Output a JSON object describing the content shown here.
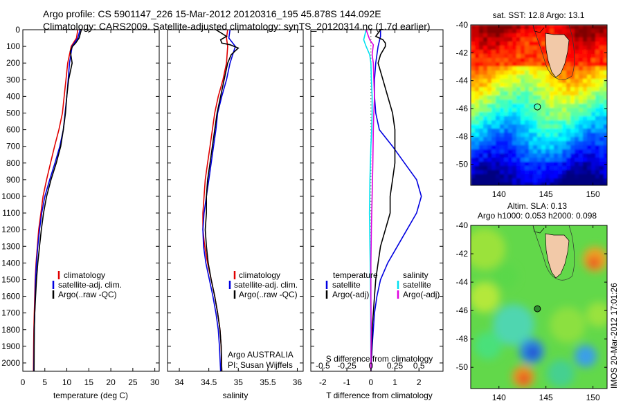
{
  "header": {
    "line1": "Argo profile: CS 5901147_226 15-Mar-2012 20120316_195 45.878S 144.092E",
    "line2": "Climatology: CARS2009. Satellite-adjusted climatology: synTS_20120314.nc (1.7d earlier)"
  },
  "colors": {
    "climatology": "#e00000",
    "satellite": "#0000e0",
    "argo": "#000000",
    "magenta": "#e000e0",
    "cyan": "#00e0f0"
  },
  "chart_data": [
    {
      "type": "line",
      "xlabel": "temperature (deg C)",
      "ylabel": "",
      "xlim": [
        0,
        31
      ],
      "ylim": [
        2050,
        0
      ],
      "xticks": [
        0,
        5,
        10,
        15,
        20,
        25,
        30
      ],
      "yticks": [
        0,
        100,
        200,
        300,
        400,
        500,
        600,
        700,
        800,
        900,
        1000,
        1100,
        1200,
        1300,
        1400,
        1500,
        1600,
        1700,
        1800,
        1900,
        2000
      ],
      "legend": [
        "climatology",
        "satellite-adj. clim.",
        "Argo(..raw -QC)"
      ],
      "series": [
        {
          "name": "climatology",
          "color": "#e00000",
          "x": [
            12.5,
            12.2,
            11.0,
            10.2,
            9.8,
            9.4,
            9.0,
            8.2,
            7.2,
            6.3,
            5.4,
            4.6,
            4.1,
            3.6,
            3.3,
            3.0,
            2.8,
            2.7,
            2.6,
            2.5,
            2.45,
            2.4
          ],
          "y": [
            0,
            50,
            100,
            200,
            300,
            400,
            500,
            600,
            700,
            800,
            900,
            1000,
            1100,
            1200,
            1300,
            1400,
            1500,
            1600,
            1700,
            1800,
            1900,
            2050
          ]
        },
        {
          "name": "satellite-adj. clim.",
          "color": "#0000e0",
          "x": [
            13.0,
            12.5,
            11.2,
            10.6,
            10.3,
            10.0,
            9.6,
            9.2,
            8.4,
            7.3,
            6.1,
            5.0,
            4.3,
            3.8,
            3.4,
            3.1,
            2.9,
            2.8,
            2.7,
            2.6,
            2.55,
            2.5
          ],
          "y": [
            0,
            50,
            100,
            200,
            300,
            400,
            500,
            600,
            700,
            800,
            900,
            1000,
            1100,
            1200,
            1300,
            1400,
            1500,
            1600,
            1700,
            1800,
            1900,
            2050
          ]
        },
        {
          "name": "Argo(..raw -QC)",
          "color": "#000000",
          "x": [
            13.3,
            12.8,
            12.0,
            11.3,
            10.8,
            11.2,
            10.4,
            10.0,
            9.7,
            9.2,
            8.6,
            7.6,
            6.4,
            5.4,
            4.7,
            4.2,
            3.8,
            3.4,
            3.1,
            2.9,
            2.7,
            2.6,
            2.55
          ],
          "y": [
            0,
            50,
            80,
            100,
            130,
            200,
            300,
            400,
            500,
            600,
            700,
            800,
            900,
            1000,
            1100,
            1200,
            1300,
            1400,
            1500,
            1600,
            1700,
            1800,
            2050
          ]
        }
      ],
      "annotations": []
    },
    {
      "type": "line",
      "xlabel": "salinity",
      "xlim": [
        33.8,
        36.1
      ],
      "ylim": [
        2050,
        0
      ],
      "xticks": [
        34,
        34.5,
        35,
        35.5,
        36
      ],
      "legend": [
        "climatology",
        "satellite-adj. clim.",
        "Argo(..raw -QC)"
      ],
      "series": [
        {
          "name": "climatology",
          "color": "#e00000",
          "x": [
            34.82,
            34.8,
            34.82,
            34.8,
            34.74,
            34.66,
            34.6,
            34.56,
            34.52,
            34.48,
            34.44,
            34.42,
            34.4,
            34.4,
            34.43,
            34.48,
            34.54,
            34.6,
            34.65,
            34.69,
            34.71,
            34.72
          ],
          "y": [
            0,
            50,
            100,
            200,
            300,
            400,
            500,
            600,
            700,
            800,
            900,
            1000,
            1100,
            1200,
            1300,
            1400,
            1500,
            1600,
            1700,
            1800,
            1900,
            2050
          ]
        },
        {
          "name": "satellite-adj. clim.",
          "color": "#0000e0",
          "x": [
            34.86,
            34.84,
            34.95,
            34.86,
            34.8,
            34.72,
            34.65,
            34.62,
            34.58,
            34.54,
            34.5,
            34.46,
            34.42,
            34.4,
            34.41,
            34.45,
            34.51,
            34.57,
            34.62,
            34.66,
            34.68,
            34.7
          ],
          "y": [
            0,
            50,
            100,
            200,
            300,
            400,
            500,
            600,
            700,
            800,
            900,
            1000,
            1100,
            1200,
            1300,
            1400,
            1500,
            1600,
            1700,
            1800,
            1900,
            2050
          ]
        },
        {
          "name": "Argo(..raw -QC)",
          "color": "#000000",
          "x": [
            34.62,
            34.8,
            34.7,
            34.72,
            34.86,
            35.0,
            34.88,
            34.82,
            34.76,
            34.7,
            34.64,
            34.6,
            34.56,
            34.52,
            34.48,
            34.46,
            34.46,
            34.44,
            34.46,
            34.49,
            34.54,
            34.6,
            34.65,
            34.69,
            34.71,
            34.72
          ],
          "y": [
            0,
            40,
            60,
            80,
            90,
            110,
            150,
            200,
            300,
            400,
            500,
            600,
            700,
            800,
            900,
            1000,
            1100,
            1200,
            1300,
            1400,
            1500,
            1600,
            1700,
            1800,
            1900,
            2050
          ]
        }
      ],
      "annotations": [
        "Argo AUSTRALIA",
        "PI: Susan Wijffels"
      ]
    },
    {
      "type": "line",
      "xlabel": "T difference from climatology",
      "xlabel2": "S difference from climatology",
      "xlim": [
        -2.5,
        3
      ],
      "ylim": [
        2050,
        0
      ],
      "xticks": [
        -2,
        -1,
        0,
        1,
        2
      ],
      "xticks2_values": [
        -0.5,
        -0.25,
        0,
        0.25,
        0.5
      ],
      "xticks2_labels": [
        "-0.5",
        "-0.25",
        "0",
        "0.25",
        "0.5"
      ],
      "legend_title_t": "temperature",
      "legend_title_s": "salinity",
      "legend": [
        "satellite",
        "Argo(-adj)",
        "satellite",
        "Argo(-adj)"
      ],
      "series": [
        {
          "name": "satellite",
          "color": "#0000e0",
          "x": [
            0.4,
            0.4,
            0.3,
            0.2,
            0.15,
            0.15,
            0.2,
            0.35,
            0.9,
            1.4,
            1.9,
            2.1,
            1.9,
            1.5,
            1.1,
            0.7,
            0.4,
            0.25,
            0.15,
            0.1,
            0.05,
            0
          ],
          "y": [
            0,
            40,
            100,
            200,
            300,
            400,
            500,
            600,
            700,
            800,
            900,
            1000,
            1100,
            1200,
            1300,
            1400,
            1500,
            1600,
            1700,
            1800,
            1900,
            2050
          ]
        },
        {
          "name": "Argo(-adj)",
          "color": "#000000",
          "x": [
            0.4,
            0.2,
            0.5,
            0.6,
            0.6,
            0.4,
            0.3,
            0.5,
            0.7,
            0.9,
            1.0,
            1.0,
            1.0,
            0.9,
            0.8,
            0.8,
            0.6,
            0.4,
            0.3,
            0.2,
            0.15,
            0.1,
            0.05,
            0
          ],
          "y": [
            0,
            40,
            60,
            80,
            100,
            150,
            200,
            300,
            400,
            500,
            600,
            700,
            800,
            900,
            1000,
            1100,
            1200,
            1300,
            1400,
            1500,
            1600,
            1700,
            1800,
            2050
          ]
        },
        {
          "name": "satellite",
          "color": "#00e0f0",
          "x": [
            -0.2,
            -0.3,
            -0.2,
            -0.05,
            0.0,
            0.02,
            0.05,
            0.05,
            0.03,
            0.0,
            -0.02,
            -0.04,
            -0.05,
            -0.06,
            -0.05,
            -0.04,
            -0.03,
            -0.02,
            -0.01,
            0.0
          ],
          "y": [
            0,
            60,
            100,
            150,
            200,
            300,
            400,
            500,
            600,
            700,
            800,
            900,
            1000,
            1100,
            1200,
            1300,
            1400,
            1500,
            1700,
            2050
          ]
        },
        {
          "name": "Argo(-adj)",
          "color": "#e000e0",
          "x": [
            -0.2,
            -0.05,
            0.1,
            0.05,
            0.1,
            0.12,
            0.15,
            0.12,
            0.1,
            0.08,
            0.05,
            0.02,
            0.0,
            0.0,
            0.01,
            0.0
          ],
          "y": [
            0,
            60,
            90,
            150,
            200,
            300,
            400,
            500,
            600,
            800,
            1000,
            1200,
            1400,
            1600,
            1800,
            2050
          ]
        }
      ]
    },
    {
      "type": "heatmap",
      "title": "sat. SST: 12.8 Argo: 13.1",
      "xlim": [
        137,
        151.5
      ],
      "ylim": [
        -51.5,
        -40
      ],
      "xticks": [
        140,
        145,
        150
      ],
      "yticks": [
        -40,
        -42,
        -44,
        -46,
        -48,
        -50
      ],
      "argo_position": {
        "lon": 144.092,
        "lat": -45.878
      }
    },
    {
      "type": "heatmap",
      "title": "Altim. SLA: 0.13",
      "subtitle": "Argo h1000: 0.053 h2000: 0.098",
      "xlim": [
        137,
        151.5
      ],
      "ylim": [
        -51.5,
        -40
      ],
      "xticks": [
        140,
        145,
        150
      ],
      "yticks": [
        -40,
        -42,
        -44,
        -46,
        -48,
        -50
      ],
      "argo_position": {
        "lon": 144.092,
        "lat": -45.878
      }
    }
  ],
  "footer": {
    "vertical_label": "IMOS 20-Mar-2012 17:01:26"
  }
}
